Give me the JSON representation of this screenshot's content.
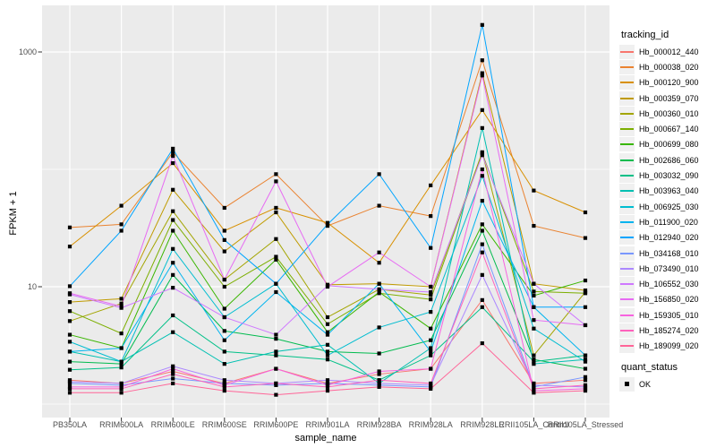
{
  "figure": {
    "y_axis": {
      "title": "FPKM + 1",
      "tick_labels": [
        "1000",
        "10"
      ]
    },
    "x_axis": {
      "title": "sample_name"
    },
    "legend": {
      "tracking_title": "tracking_id",
      "quant_title": "quant_status",
      "quant_label": "OK"
    },
    "colors": {
      "background": "#FFFFFF",
      "panel_bg": "#EBEBEB",
      "grid": "#FFFFFF",
      "axis_text": "#4D4D4D",
      "tick_mark": "#333333",
      "legend_key_bg": "#F0F0F0",
      "point": "#000000"
    }
  },
  "chart_data": {
    "type": "line",
    "title": "",
    "xlabel": "sample_name",
    "ylabel": "FPKM + 1",
    "y_scale": "log10",
    "ylim": [
      0.77,
      2500
    ],
    "y_breaks": [
      10,
      1000
    ],
    "y_minor_breaks": [
      1,
      100
    ],
    "grid": true,
    "legend_position": "right",
    "point_marker": "small-black-square",
    "categories": [
      "PB350LA",
      "RRIM600LA",
      "RRIM600LE",
      "RRIM600SE",
      "RRIM600PE",
      "RRIM901LA",
      "RRIM928BA",
      "RRIM928LA",
      "RRIM928LE",
      "RRII105LA_Control",
      "RRII105LA_Stressed"
    ],
    "series": [
      {
        "name": "Hb_000012_440",
        "color": "#F8766D",
        "values": [
          1.6,
          1.5,
          1.9,
          1.5,
          2.0,
          1.5,
          1.8,
          2.0,
          7.7,
          1.5,
          1.6
        ]
      },
      {
        "name": "Hb_000038_020",
        "color": "#EA8331",
        "values": [
          32,
          34,
          140,
          47,
          91,
          33,
          49,
          40,
          850,
          33,
          26
        ]
      },
      {
        "name": "Hb_000120_900",
        "color": "#D89000",
        "values": [
          22,
          49,
          113,
          30,
          47,
          35,
          16,
          73,
          320,
          66,
          43
        ]
      },
      {
        "name": "Hb_000359_070",
        "color": "#C09B00",
        "values": [
          7.4,
          7.9,
          67,
          20,
          43,
          10.4,
          10.6,
          10,
          660,
          10.6,
          9.3
        ]
      },
      {
        "name": "Hb_000360_010",
        "color": "#A3A500",
        "values": [
          5.1,
          7.2,
          44,
          11.5,
          25.5,
          5.5,
          9.5,
          8.5,
          140,
          2.6,
          9.0
        ]
      },
      {
        "name": "Hb_000667_140",
        "color": "#7CAE00",
        "values": [
          6.2,
          4.0,
          37,
          10,
          18,
          4.8,
          8.8,
          7.8,
          137,
          9.1,
          8.8
        ]
      },
      {
        "name": "Hb_000699_080",
        "color": "#39B600",
        "values": [
          3.9,
          3.0,
          30,
          6.5,
          17,
          4.1,
          9.0,
          4.4,
          34,
          8.4,
          11.3
        ]
      },
      {
        "name": "Hb_002686_060",
        "color": "#00BB4E",
        "values": [
          2.3,
          2.2,
          12.6,
          4.2,
          3.6,
          2.8,
          2.7,
          3.5,
          30,
          2.4,
          2.0
        ]
      },
      {
        "name": "Hb_003032_090",
        "color": "#00C087",
        "values": [
          1.96,
          2.05,
          5.7,
          2.8,
          2.6,
          2.4,
          1.6,
          2.6,
          6.7,
          2.3,
          2.6
        ]
      },
      {
        "name": "Hb_003963_040",
        "color": "#00C0B2",
        "values": [
          2.8,
          2.3,
          4.1,
          2.2,
          2.8,
          3.2,
          1.5,
          3.0,
          225,
          2.2,
          2.4
        ]
      },
      {
        "name": "Hb_006925_030",
        "color": "#00BDD0",
        "values": [
          3.4,
          2.3,
          21,
          5.5,
          10.6,
          2.6,
          4.5,
          6.1,
          88,
          4.4,
          2.3
        ]
      },
      {
        "name": "Hb_011900_020",
        "color": "#00B4EF",
        "values": [
          2.8,
          3.0,
          16,
          3.5,
          9.0,
          3.9,
          10.6,
          2.8,
          54,
          6.7,
          2.6
        ]
      },
      {
        "name": "Hb_012940_020",
        "color": "#00A5FF",
        "values": [
          10.1,
          30,
          150,
          25,
          10.6,
          34,
          91,
          21.4,
          1700,
          6.7,
          6.7
        ]
      },
      {
        "name": "Hb_034168_010",
        "color": "#7997FF",
        "values": [
          1.5,
          1.45,
          1.65,
          1.5,
          1.45,
          1.5,
          1.45,
          1.4,
          23,
          1.4,
          1.7
        ]
      },
      {
        "name": "Hb_073490_010",
        "color": "#AC88FF",
        "values": [
          1.55,
          1.5,
          2.1,
          1.6,
          1.5,
          1.6,
          1.5,
          1.45,
          12.6,
          1.45,
          1.4
        ]
      },
      {
        "name": "Hb_106552_030",
        "color": "#CF78FF",
        "values": [
          8.6,
          6.6,
          9.8,
          5.5,
          3.9,
          10.2,
          9.5,
          9.0,
          132,
          10.6,
          4.7
        ]
      },
      {
        "name": "Hb_156850_020",
        "color": "#E76BF3",
        "values": [
          8.8,
          6.8,
          130,
          11.5,
          79,
          10.0,
          19.6,
          10.0,
          630,
          5.2,
          4.7
        ]
      },
      {
        "name": "Hb_159305_010",
        "color": "#F763DF",
        "values": [
          1.4,
          1.4,
          2.0,
          1.45,
          2.0,
          1.45,
          1.9,
          2.0,
          100,
          1.3,
          1.35
        ]
      },
      {
        "name": "Hb_185274_020",
        "color": "#FF62BC",
        "values": [
          1.35,
          1.35,
          1.8,
          1.4,
          1.5,
          1.4,
          1.6,
          1.5,
          19.6,
          1.35,
          1.45
        ]
      },
      {
        "name": "Hb_189099_020",
        "color": "#FF6598",
        "values": [
          1.25,
          1.25,
          1.5,
          1.3,
          1.2,
          1.3,
          1.4,
          1.35,
          3.3,
          1.25,
          1.3
        ]
      }
    ]
  }
}
